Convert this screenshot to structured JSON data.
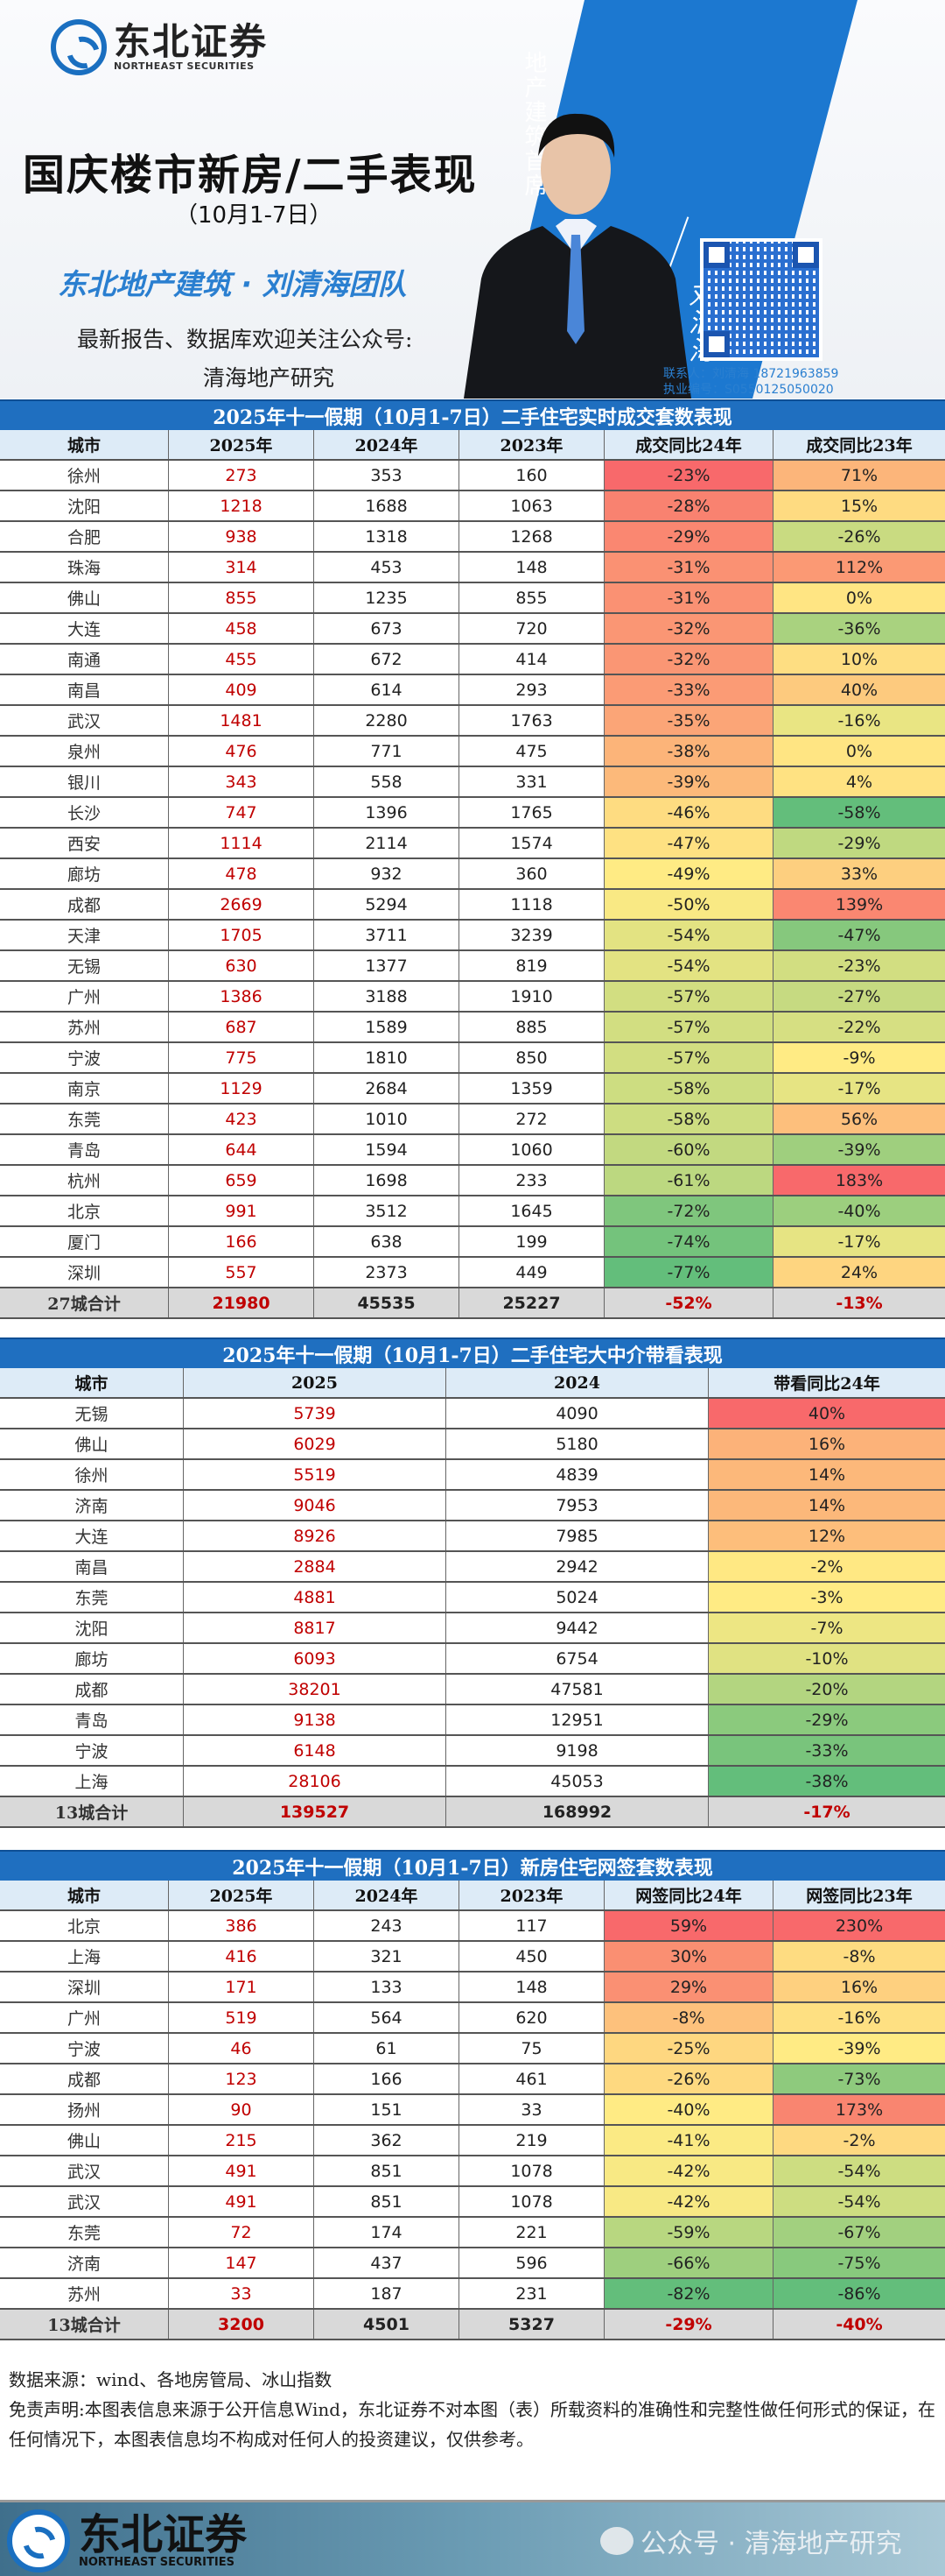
{
  "banner": {
    "logo_cn": "东北证券",
    "logo_en": "NORTHEAST SECURITIES",
    "title": "国庆楼市新房/二手表现",
    "subtitle": "（10月1-7日）",
    "role": "地产建筑首席",
    "analyst": "刘清海",
    "team": "东北地产建筑 · 刘清海团队",
    "follow": "最新报告、数据库欢迎关注公众号:",
    "account": "清海地产研究",
    "contact": "联系人：刘清海  18721963859",
    "license": "执业编号：S0550125050020"
  },
  "colors": {
    "brand": "#1f6fc0",
    "header_bg": "#ddebf7",
    "total_bg": "#d9d9d9",
    "accent_red": "#c00000",
    "scale_low": "#63be7b",
    "scale_mid": "#ffeb84",
    "scale_high": "#f8696b"
  },
  "table1": {
    "title": "2025年十一假期（10月1-7日）二手住宅实时成交套数表现",
    "headers": [
      "城市",
      "2025年",
      "2024年",
      "2023年",
      "成交同比24年",
      "成交同比23年"
    ],
    "rows": [
      [
        "徐州",
        "273",
        "353",
        "160",
        "-23%",
        "71%"
      ],
      [
        "沈阳",
        "1218",
        "1688",
        "1063",
        "-28%",
        "15%"
      ],
      [
        "合肥",
        "938",
        "1318",
        "1268",
        "-29%",
        "-26%"
      ],
      [
        "珠海",
        "314",
        "453",
        "148",
        "-31%",
        "112%"
      ],
      [
        "佛山",
        "855",
        "1235",
        "855",
        "-31%",
        "0%"
      ],
      [
        "大连",
        "458",
        "673",
        "720",
        "-32%",
        "-36%"
      ],
      [
        "南通",
        "455",
        "672",
        "414",
        "-32%",
        "10%"
      ],
      [
        "南昌",
        "409",
        "614",
        "293",
        "-33%",
        "40%"
      ],
      [
        "武汉",
        "1481",
        "2280",
        "1763",
        "-35%",
        "-16%"
      ],
      [
        "泉州",
        "476",
        "771",
        "475",
        "-38%",
        "0%"
      ],
      [
        "银川",
        "343",
        "558",
        "331",
        "-39%",
        "4%"
      ],
      [
        "长沙",
        "747",
        "1396",
        "1765",
        "-46%",
        "-58%"
      ],
      [
        "西安",
        "1114",
        "2114",
        "1574",
        "-47%",
        "-29%"
      ],
      [
        "廊坊",
        "478",
        "932",
        "360",
        "-49%",
        "33%"
      ],
      [
        "成都",
        "2669",
        "5294",
        "1118",
        "-50%",
        "139%"
      ],
      [
        "天津",
        "1705",
        "3711",
        "3239",
        "-54%",
        "-47%"
      ],
      [
        "无锡",
        "630",
        "1377",
        "819",
        "-54%",
        "-23%"
      ],
      [
        "广州",
        "1386",
        "3188",
        "1910",
        "-57%",
        "-27%"
      ],
      [
        "苏州",
        "687",
        "1589",
        "885",
        "-57%",
        "-22%"
      ],
      [
        "宁波",
        "775",
        "1810",
        "850",
        "-57%",
        "-9%"
      ],
      [
        "南京",
        "1129",
        "2684",
        "1359",
        "-58%",
        "-17%"
      ],
      [
        "东莞",
        "423",
        "1010",
        "272",
        "-58%",
        "56%"
      ],
      [
        "青岛",
        "644",
        "1594",
        "1060",
        "-60%",
        "-39%"
      ],
      [
        "杭州",
        "659",
        "1698",
        "233",
        "-61%",
        "183%"
      ],
      [
        "北京",
        "991",
        "3512",
        "1645",
        "-72%",
        "-40%"
      ],
      [
        "厦门",
        "166",
        "638",
        "199",
        "-74%",
        "-17%"
      ],
      [
        "深圳",
        "557",
        "2373",
        "449",
        "-77%",
        "24%"
      ]
    ],
    "total": [
      "27城合计",
      "21980",
      "45535",
      "25227",
      "-52%",
      "-13%"
    ]
  },
  "table2": {
    "title": "2025年十一假期（10月1-7日）二手住宅大中介带看表现",
    "headers": [
      "城市",
      "2025",
      "2024",
      "带看同比24年"
    ],
    "rows": [
      [
        "无锡",
        "5739",
        "4090",
        "40%"
      ],
      [
        "佛山",
        "6029",
        "5180",
        "16%"
      ],
      [
        "徐州",
        "5519",
        "4839",
        "14%"
      ],
      [
        "济南",
        "9046",
        "7953",
        "14%"
      ],
      [
        "大连",
        "8926",
        "7985",
        "12%"
      ],
      [
        "南昌",
        "2884",
        "2942",
        "-2%"
      ],
      [
        "东莞",
        "4881",
        "5024",
        "-3%"
      ],
      [
        "沈阳",
        "8817",
        "9442",
        "-7%"
      ],
      [
        "廊坊",
        "6093",
        "6754",
        "-10%"
      ],
      [
        "成都",
        "38201",
        "47581",
        "-20%"
      ],
      [
        "青岛",
        "9138",
        "12951",
        "-29%"
      ],
      [
        "宁波",
        "6148",
        "9198",
        "-33%"
      ],
      [
        "上海",
        "28106",
        "45053",
        "-38%"
      ]
    ],
    "total": [
      "13城合计",
      "139527",
      "168992",
      "-17%"
    ]
  },
  "table3": {
    "title": "2025年十一假期（10月1-7日）新房住宅网签套数表现",
    "headers": [
      "城市",
      "2025年",
      "2024年",
      "2023年",
      "网签同比24年",
      "网签同比23年"
    ],
    "rows": [
      [
        "北京",
        "386",
        "243",
        "117",
        "59%",
        "230%"
      ],
      [
        "上海",
        "416",
        "321",
        "450",
        "30%",
        "-8%"
      ],
      [
        "深圳",
        "171",
        "133",
        "148",
        "29%",
        "16%"
      ],
      [
        "广州",
        "519",
        "564",
        "620",
        "-8%",
        "-16%"
      ],
      [
        "宁波",
        "46",
        "61",
        "75",
        "-25%",
        "-39%"
      ],
      [
        "成都",
        "123",
        "166",
        "461",
        "-26%",
        "-73%"
      ],
      [
        "扬州",
        "90",
        "151",
        "33",
        "-40%",
        "173%"
      ],
      [
        "佛山",
        "215",
        "362",
        "219",
        "-41%",
        "-2%"
      ],
      [
        "武汉",
        "491",
        "851",
        "1078",
        "-42%",
        "-54%"
      ],
      [
        "武汉",
        "491",
        "851",
        "1078",
        "-42%",
        "-54%"
      ],
      [
        "东莞",
        "72",
        "174",
        "221",
        "-59%",
        "-67%"
      ],
      [
        "济南",
        "147",
        "437",
        "596",
        "-66%",
        "-75%"
      ],
      [
        "苏州",
        "33",
        "187",
        "231",
        "-82%",
        "-86%"
      ]
    ],
    "total": [
      "13城合计",
      "3200",
      "4501",
      "5327",
      "-29%",
      "-40%"
    ]
  },
  "footer": {
    "source": "数据来源：wind、各地房管局、冰山指数",
    "disclaimer": "免责声明:本图表信息来源于公开信息Wind，东北证券不对本图（表）所载资料的准确性和完整性做任何形式的保证，在任何情况下，本图表信息均不构成对任何人的投资建议，仅供参考。"
  },
  "bottom": {
    "logo_cn": "东北证券",
    "logo_en": "NORTHEAST SECURITIES",
    "wechat": "公众号 · 清海地产研究"
  }
}
